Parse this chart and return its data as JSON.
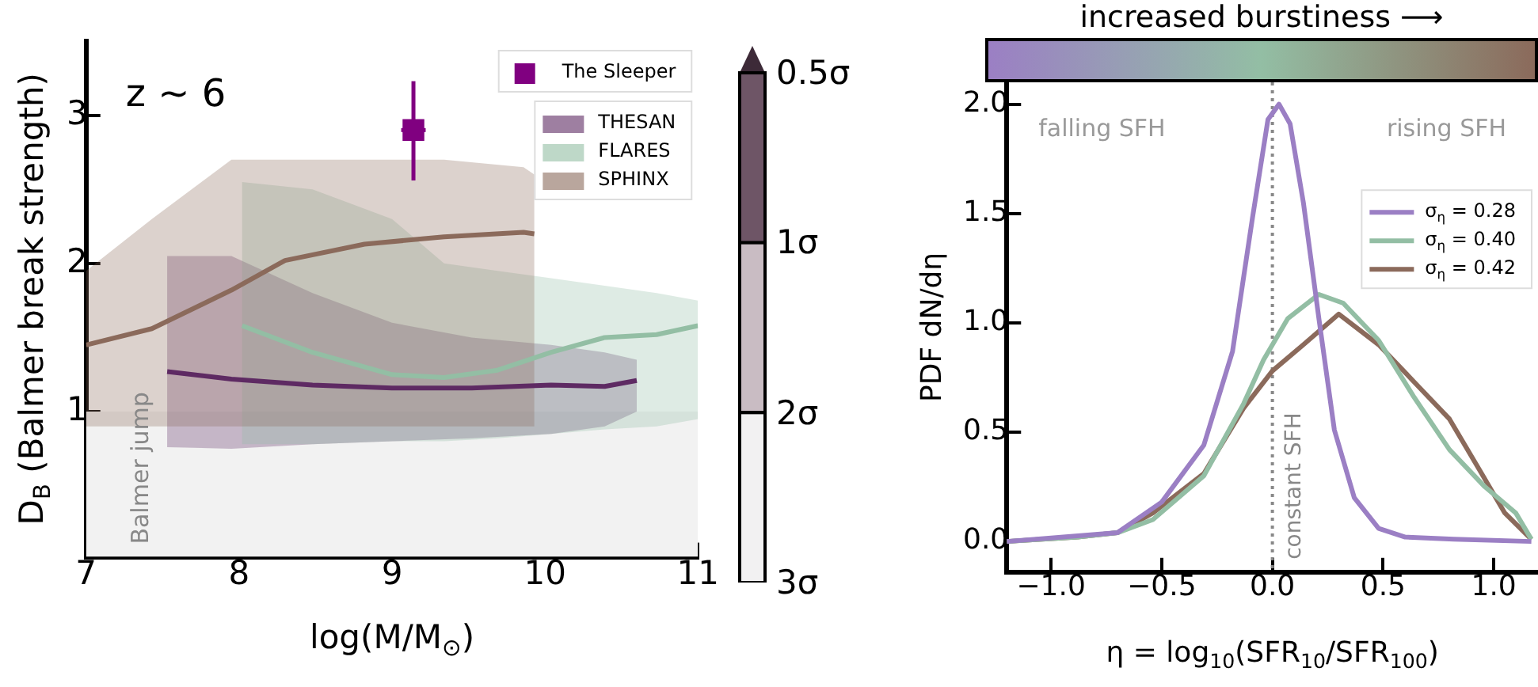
{
  "chart_data": [
    {
      "type": "line",
      "xlabel": "log(M/M$_{⊙}$)",
      "ylabel": "D$_{B}$ (Balmer break strength)",
      "xlim": [
        7,
        11
      ],
      "ylim": [
        0.02,
        3.5
      ],
      "xticks": [
        7,
        8,
        9,
        10,
        11
      ],
      "yticks": [
        1,
        2,
        3
      ],
      "legend": "top right",
      "grid": false,
      "annotations": [
        "z ~ 6"
      ],
      "bands": [
        {
          "axis": "y",
          "from": 0.02,
          "to": 1.0,
          "label": "Balmer jump",
          "color": "#f2f2f2"
        }
      ],
      "series": [
        {
          "type": "scatter",
          "name": "The Sleeper",
          "color": "#800080",
          "marker": "square",
          "x": [
            9.14
          ],
          "values": [
            2.9
          ],
          "errors": [
            [
              2.56,
              3.23
            ]
          ],
          "xerrors": [
            0.08
          ]
        },
        {
          "name": "THESAN",
          "color": "#5e2a63",
          "x": [
            7.53,
            7.95,
            8.48,
            9.0,
            9.52,
            10.04,
            10.39,
            10.6
          ],
          "values": [
            1.27,
            1.22,
            1.18,
            1.16,
            1.16,
            1.18,
            1.17,
            1.21
          ],
          "lower": [
            0.76,
            0.75,
            0.78,
            0.8,
            0.82,
            0.85,
            0.9,
            1.0
          ],
          "upper": [
            2.05,
            2.05,
            1.8,
            1.6,
            1.5,
            1.45,
            1.4,
            1.35
          ]
        },
        {
          "name": "FLARES",
          "color": "#93bea4",
          "x": [
            8.02,
            8.48,
            9.0,
            9.34,
            9.69,
            10.04,
            10.39,
            10.73,
            11.0
          ],
          "values": [
            1.58,
            1.4,
            1.25,
            1.23,
            1.28,
            1.4,
            1.5,
            1.52,
            1.58
          ],
          "lower": [
            0.78,
            0.78,
            0.8,
            0.8,
            0.82,
            0.85,
            0.88,
            0.9,
            0.95
          ],
          "upper": [
            2.55,
            2.5,
            2.3,
            2.0,
            1.95,
            1.9,
            1.85,
            1.8,
            1.75
          ]
        },
        {
          "name": "SPHINX",
          "color": "#8b6a5b",
          "x": [
            7.0,
            7.43,
            7.95,
            8.3,
            8.82,
            9.34,
            9.86,
            9.93
          ],
          "values": [
            1.45,
            1.56,
            1.82,
            2.02,
            2.13,
            2.18,
            2.21,
            2.2
          ],
          "lower": [
            0.9,
            0.9,
            0.9,
            0.9,
            0.9,
            0.9,
            0.9,
            0.9
          ],
          "upper": [
            1.95,
            2.3,
            2.7,
            2.7,
            2.7,
            2.7,
            2.65,
            2.6
          ]
        }
      ]
    },
    {
      "type": "other",
      "annotations": [
        "0.5σ",
        "1σ",
        "2σ",
        "3σ"
      ]
    },
    {
      "type": "line",
      "clabel": "increased burstiness ⟶",
      "xlabel": "η = log$_{10}$(SFR$_{10}$/SFR$_{100}$)",
      "ylabel": "PDF dN/dη",
      "xlim": [
        -1.2,
        1.2
      ],
      "ylim": [
        -0.14,
        2.1
      ],
      "xticks": [
        {
          "value": -1,
          "label": "−1.0"
        },
        {
          "value": -0.5,
          "label": "−0.5"
        },
        {
          "value": 0,
          "label": "0.0"
        },
        {
          "value": 0.5,
          "label": "0.5"
        },
        {
          "value": 1,
          "label": "1.0"
        }
      ],
      "yticks": [
        {
          "value": 0,
          "label": "0.0"
        },
        {
          "value": 0.5,
          "label": "0.5"
        },
        {
          "value": 1,
          "label": "1.0"
        },
        {
          "value": 1.5,
          "label": "1.5"
        },
        {
          "value": 2,
          "label": "2.0"
        }
      ],
      "legend": "right",
      "grid": false,
      "annotations": [
        "falling SFH",
        "rising SFH"
      ],
      "ref_lines": [
        {
          "axis": "x",
          "value": 0,
          "label": "constant SFH",
          "color": "#888888",
          "line_style": "dotted"
        }
      ],
      "series": [
        {
          "name": "σ$_{η}$ = 0.28",
          "color": "#9b7fc4",
          "x": [
            -1.2,
            -0.7,
            -0.5,
            -0.31,
            -0.18,
            -0.09,
            -0.02,
            0.03,
            0.08,
            0.14,
            0.21,
            0.28,
            0.37,
            0.48,
            0.6,
            0.82,
            1.17
          ],
          "values": [
            0.0,
            0.04,
            0.18,
            0.44,
            0.87,
            1.48,
            1.93,
            2.0,
            1.91,
            1.55,
            1.02,
            0.51,
            0.2,
            0.06,
            0.02,
            0.01,
            0.0
          ]
        },
        {
          "name": "σ$_{η}$ = 0.40",
          "color": "#93bea4",
          "x": [
            -1.2,
            -0.88,
            -0.7,
            -0.54,
            -0.31,
            -0.13,
            -0.04,
            0.07,
            0.21,
            0.32,
            0.48,
            0.64,
            0.8,
            0.96,
            1.1,
            1.17
          ],
          "values": [
            0.0,
            0.02,
            0.04,
            0.1,
            0.3,
            0.63,
            0.83,
            1.02,
            1.13,
            1.09,
            0.92,
            0.66,
            0.42,
            0.25,
            0.13,
            0.01
          ]
        },
        {
          "name": "σ$_{η}$ = 0.42",
          "color": "#8b6a5b",
          "x": [
            -1.2,
            -0.88,
            -0.7,
            -0.54,
            -0.31,
            -0.13,
            0.0,
            0.14,
            0.3,
            0.48,
            0.64,
            0.8,
            0.94,
            1.05,
            1.17
          ],
          "values": [
            0.0,
            0.02,
            0.04,
            0.13,
            0.31,
            0.61,
            0.78,
            0.9,
            1.04,
            0.9,
            0.73,
            0.56,
            0.32,
            0.13,
            0.01
          ]
        }
      ]
    }
  ]
}
